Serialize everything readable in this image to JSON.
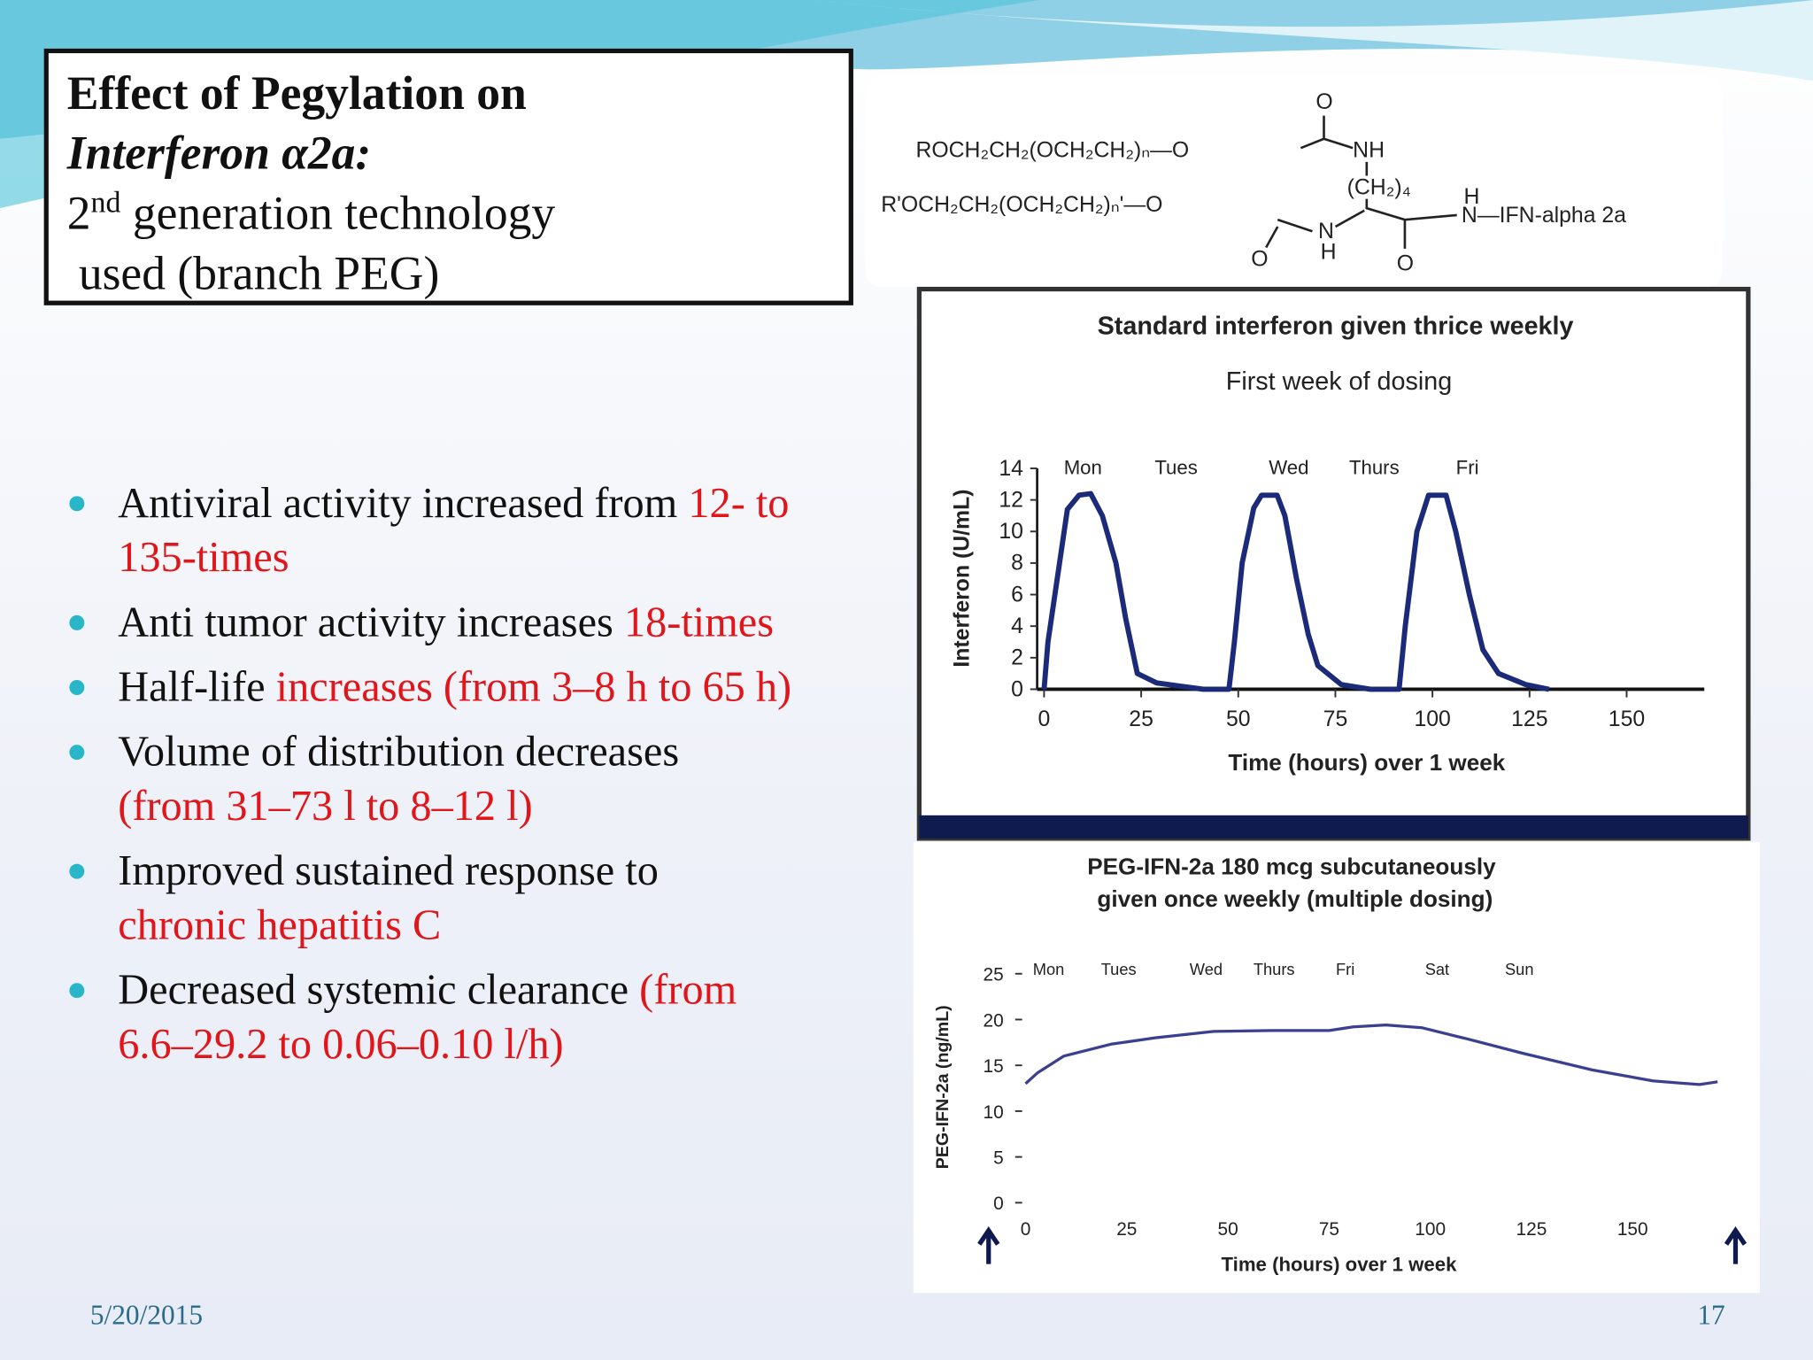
{
  "title": {
    "line1": "Effect of Pegylation on",
    "line2": "Interferon α2a:",
    "line3_pre": "2",
    "line3_sup": "nd",
    "line3_post": "generation technology",
    "line4": "used (branch PEG)"
  },
  "bullets": [
    {
      "lines": [
        {
          "plain": "Antiviral activity increased from",
          "red": "12- to"
        },
        {
          "red": "135-times"
        }
      ]
    },
    {
      "lines": [
        {
          "plain": "Anti tumor activity increases",
          "red": "18-times"
        }
      ]
    },
    {
      "lines": [
        {
          "plain": "Half-life",
          "red": "increases (from 3–8 h to 65 h)"
        }
      ]
    },
    {
      "lines": [
        {
          "plain": "Volume of distribution decreases"
        },
        {
          "red": "(from 31–73 l to 8–12 l)"
        }
      ]
    },
    {
      "lines": [
        {
          "plain": "Improved sustained response to"
        },
        {
          "red": "chronic hepatitis C"
        }
      ]
    },
    {
      "lines": [
        {
          "plain": "Decreased systemic clearance",
          "red": "(from"
        },
        {
          "red": "6.6–29.2 to 0.06–0.10 l/h)"
        }
      ]
    }
  ],
  "structure": {
    "chain1": "ROCH₂CH₂(OCH₂CH₂)ₙ—O",
    "chain2": "R'OCH₂CH₂(OCH₂CH₂)ₙ'—O",
    "o_top": "O",
    "nh_top": "NH",
    "ch2": "(CH₂)₄",
    "n_mid": "N",
    "h_mid": "H",
    "o_bot1": "O",
    "o_bot2": "O",
    "h_right": "H",
    "ifn": "N—IFN-alpha 2a"
  },
  "chart_data": [
    {
      "type": "line",
      "title": "Standard interferon given thrice weekly",
      "subtitle": "First week of dosing",
      "x_label": "Time (hours) over 1 week",
      "y_label": "Interferon (U/mL)",
      "x": [
        0,
        1,
        6,
        9,
        12,
        15,
        18.5,
        21,
        24,
        29,
        35,
        41,
        47.6,
        49,
        51,
        54,
        56,
        60,
        62,
        65,
        68,
        70.5,
        76.5,
        84,
        91.4,
        93,
        96,
        99,
        103.5,
        106,
        109.5,
        113,
        117,
        124,
        130
      ],
      "series": [
        {
          "color": "#1c2a7a",
          "values": [
            0,
            3,
            11.4,
            12.3,
            12.4,
            11,
            8,
            4.5,
            1,
            0.4,
            0.2,
            0,
            0,
            3,
            8,
            11.5,
            12.3,
            12.3,
            11,
            7,
            3.5,
            1.5,
            0.3,
            0,
            0,
            4,
            10,
            12.3,
            12.3,
            10,
            6,
            2.5,
            1,
            0.3,
            0
          ]
        }
      ],
      "xlim": [
        0,
        170
      ],
      "xticks": [
        0,
        25,
        50,
        75,
        100,
        125,
        150
      ],
      "ylim": [
        0,
        14
      ],
      "yticks": [
        0,
        2,
        4,
        6,
        8,
        10,
        12,
        14
      ],
      "annotations": [
        {
          "text": "Mon",
          "x": 10
        },
        {
          "text": "Tues",
          "x": 34
        },
        {
          "text": "Wed",
          "x": 63
        },
        {
          "text": "Thurs",
          "x": 85
        },
        {
          "text": "Fri",
          "x": 109
        }
      ]
    },
    {
      "type": "line",
      "title": "PEG-IFN-2a 180 mcg subcutaneously",
      "subtitle": "given once weekly (multiple dosing)",
      "x_label": "Time (hours) over 1 week",
      "y_label": "PEG-IFN-2a (ng/mL)",
      "x": [
        0,
        3,
        9.4,
        21,
        32,
        46.5,
        61,
        75,
        81,
        89,
        98,
        109,
        123,
        140,
        155,
        166.5,
        171
      ],
      "series": [
        {
          "color": "#3a3f8f",
          "values": [
            13,
            14.2,
            16,
            17.3,
            18,
            18.7,
            18.8,
            18.8,
            19.2,
            19.4,
            19.1,
            17.9,
            16.3,
            14.5,
            13.3,
            12.9,
            13.2
          ]
        }
      ],
      "xlim": [
        0,
        170
      ],
      "xticks": [
        0,
        25,
        50,
        75,
        100,
        125,
        150
      ],
      "ylim": [
        0,
        25
      ],
      "yticks": [
        0,
        5,
        10,
        15,
        20,
        25
      ],
      "annotations": [
        {
          "text": "Mon",
          "x": 5.7
        },
        {
          "text": "Tues",
          "x": 23
        },
        {
          "text": "Wed",
          "x": 44.6
        },
        {
          "text": "Thurs",
          "x": 61.4
        },
        {
          "text": "Fri",
          "x": 79
        },
        {
          "text": "Sat",
          "x": 101.7
        },
        {
          "text": "Sun",
          "x": 122
        }
      ]
    }
  ],
  "footer": {
    "date": "5/20/2015",
    "page": "17"
  }
}
